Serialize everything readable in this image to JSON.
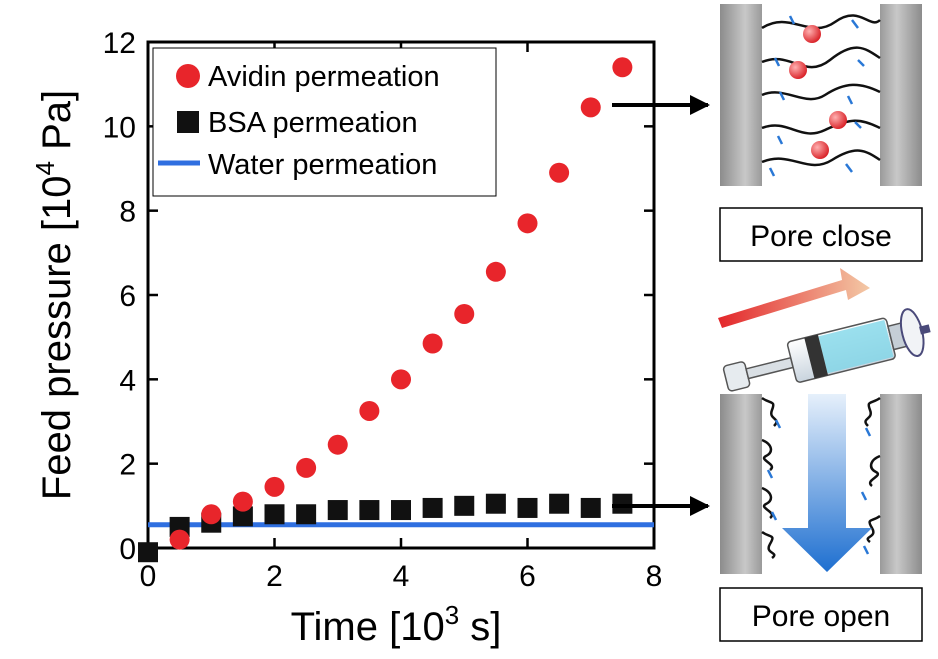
{
  "chart_data": {
    "type": "scatter",
    "xlabel_main": "Time [10",
    "xlabel_sup": "3",
    "xlabel_end": " s]",
    "ylabel_main": "Feed pressure [10",
    "ylabel_sup": "4",
    "ylabel_end": " Pa]",
    "xlim": [
      0,
      8
    ],
    "ylim": [
      0,
      12
    ],
    "x_ticks": [
      0,
      2,
      4,
      6,
      8
    ],
    "y_ticks": [
      0,
      2,
      4,
      6,
      8,
      10,
      12
    ],
    "grid": false,
    "legend_position": "top-left",
    "series": [
      {
        "name": "Avidin permeation",
        "marker": "circle",
        "color": "#e8252b",
        "x": [
          0.5,
          1.0,
          1.5,
          2.0,
          2.5,
          3.0,
          3.5,
          4.0,
          4.5,
          5.0,
          5.5,
          6.0,
          6.5,
          7.0,
          7.5
        ],
        "y": [
          0.2,
          0.8,
          1.1,
          1.45,
          1.9,
          2.45,
          3.25,
          4.0,
          4.85,
          5.55,
          6.55,
          7.7,
          8.9,
          10.45,
          11.4
        ]
      },
      {
        "name": "BSA permeation",
        "marker": "square",
        "color": "#111111",
        "x": [
          0,
          0.5,
          1.0,
          1.5,
          2.0,
          2.5,
          3.0,
          3.5,
          4.0,
          4.5,
          5.0,
          5.5,
          6.0,
          6.5,
          7.0,
          7.5
        ],
        "y": [
          -0.1,
          0.5,
          0.6,
          0.75,
          0.8,
          0.8,
          0.9,
          0.9,
          0.9,
          0.95,
          1.0,
          1.05,
          0.95,
          1.05,
          0.95,
          1.05
        ]
      },
      {
        "name": "Water permeation",
        "marker": "line",
        "color": "#2f6fe0",
        "x": [
          0,
          8
        ],
        "y": [
          0.55,
          0.55
        ]
      }
    ]
  },
  "panels": {
    "close_label": "Pore close",
    "open_label": "Pore open"
  },
  "colors": {
    "pore_wall": "#a8a8a8",
    "protein": "#e8252b",
    "flow_arrow": "#2a78d6"
  },
  "icons": [
    "pore-closed-illustration",
    "pore-open-illustration",
    "syringe-icon",
    "temperature-gradient-arrow",
    "flow-arrow"
  ]
}
